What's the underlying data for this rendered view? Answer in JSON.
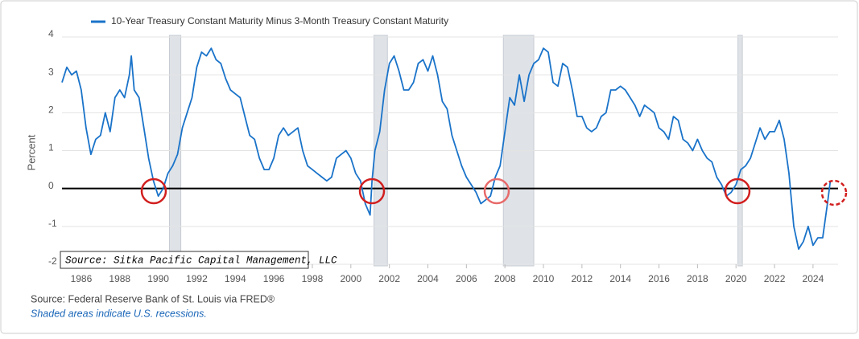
{
  "chart_data": {
    "type": "line",
    "series": [
      {
        "name": "10-Year Treasury Constant Maturity Minus 3-Month Treasury Constant Maturity",
        "color": "#1a73c9",
        "x": [
          1985.0,
          1985.25,
          1985.5,
          1985.75,
          1986.0,
          1986.25,
          1986.5,
          1986.75,
          1987.0,
          1987.25,
          1987.5,
          1987.75,
          1988.0,
          1988.25,
          1988.5,
          1988.6,
          1988.75,
          1989.0,
          1989.25,
          1989.5,
          1989.75,
          1990.0,
          1990.25,
          1990.5,
          1990.75,
          1991.0,
          1991.25,
          1991.5,
          1991.75,
          1992.0,
          1992.25,
          1992.5,
          1992.75,
          1993.0,
          1993.25,
          1993.5,
          1993.75,
          1994.0,
          1994.25,
          1994.5,
          1994.75,
          1995.0,
          1995.25,
          1995.5,
          1995.75,
          1996.0,
          1996.25,
          1996.5,
          1996.75,
          1997.0,
          1997.25,
          1997.5,
          1997.75,
          1998.0,
          1998.25,
          1998.5,
          1998.75,
          1999.0,
          1999.25,
          1999.5,
          1999.75,
          2000.0,
          2000.25,
          2000.5,
          2000.75,
          2001.0,
          2001.1,
          2001.25,
          2001.5,
          2001.75,
          2002.0,
          2002.25,
          2002.5,
          2002.75,
          2003.0,
          2003.25,
          2003.5,
          2003.75,
          2004.0,
          2004.25,
          2004.5,
          2004.75,
          2005.0,
          2005.25,
          2005.5,
          2005.75,
          2006.0,
          2006.25,
          2006.5,
          2006.75,
          2007.0,
          2007.25,
          2007.5,
          2007.75,
          2008.0,
          2008.25,
          2008.5,
          2008.75,
          2009.0,
          2009.25,
          2009.5,
          2009.75,
          2010.0,
          2010.25,
          2010.5,
          2010.75,
          2011.0,
          2011.25,
          2011.5,
          2011.75,
          2012.0,
          2012.25,
          2012.5,
          2012.75,
          2013.0,
          2013.25,
          2013.5,
          2013.75,
          2014.0,
          2014.25,
          2014.5,
          2014.75,
          2015.0,
          2015.25,
          2015.5,
          2015.75,
          2016.0,
          2016.25,
          2016.5,
          2016.75,
          2017.0,
          2017.25,
          2017.5,
          2017.75,
          2018.0,
          2018.25,
          2018.5,
          2018.75,
          2019.0,
          2019.25,
          2019.5,
          2019.75,
          2020.0,
          2020.25,
          2020.5,
          2020.75,
          2021.0,
          2021.25,
          2021.5,
          2021.75,
          2022.0,
          2022.25,
          2022.5,
          2022.75,
          2023.0,
          2023.25,
          2023.5,
          2023.75,
          2024.0,
          2024.25,
          2024.5,
          2024.75,
          2024.9
        ],
        "values": [
          2.8,
          3.2,
          3.0,
          3.1,
          2.6,
          1.6,
          0.9,
          1.3,
          1.4,
          2.0,
          1.5,
          2.4,
          2.6,
          2.4,
          3.0,
          3.5,
          2.6,
          2.4,
          1.6,
          0.8,
          0.2,
          -0.2,
          0.0,
          0.4,
          0.6,
          0.9,
          1.6,
          2.0,
          2.4,
          3.2,
          3.6,
          3.5,
          3.7,
          3.4,
          3.3,
          2.9,
          2.6,
          2.5,
          2.4,
          1.9,
          1.4,
          1.3,
          0.8,
          0.5,
          0.5,
          0.8,
          1.4,
          1.6,
          1.4,
          1.5,
          1.6,
          1.0,
          0.6,
          0.5,
          0.4,
          0.3,
          0.2,
          0.3,
          0.8,
          0.9,
          1.0,
          0.8,
          0.4,
          0.2,
          -0.4,
          -0.7,
          0.2,
          1.0,
          1.5,
          2.6,
          3.3,
          3.5,
          3.1,
          2.6,
          2.6,
          2.8,
          3.3,
          3.4,
          3.1,
          3.5,
          3.0,
          2.3,
          2.1,
          1.4,
          1.0,
          0.6,
          0.3,
          0.1,
          -0.1,
          -0.4,
          -0.3,
          -0.2,
          0.3,
          0.6,
          1.5,
          2.4,
          2.2,
          3.0,
          2.3,
          3.0,
          3.3,
          3.4,
          3.7,
          3.6,
          2.8,
          2.7,
          3.3,
          3.2,
          2.6,
          1.9,
          1.9,
          1.6,
          1.5,
          1.6,
          1.9,
          2.0,
          2.6,
          2.6,
          2.7,
          2.6,
          2.4,
          2.2,
          1.9,
          2.2,
          2.1,
          2.0,
          1.6,
          1.5,
          1.3,
          1.9,
          1.8,
          1.3,
          1.2,
          1.0,
          1.3,
          1.0,
          0.8,
          0.7,
          0.3,
          0.1,
          -0.2,
          -0.1,
          0.1,
          0.5,
          0.6,
          0.8,
          1.2,
          1.6,
          1.3,
          1.5,
          1.5,
          1.8,
          1.3,
          0.4,
          -1.0,
          -1.6,
          -1.4,
          -1.0,
          -1.5,
          -1.3,
          -1.3,
          -0.4,
          0.2
        ]
      }
    ],
    "recessions": [
      [
        1990.58,
        1991.17
      ],
      [
        2001.2,
        2001.9
      ],
      [
        2007.92,
        2009.5
      ],
      [
        2020.1,
        2020.33
      ]
    ],
    "xlim": [
      1985,
      2025.3
    ],
    "xticks": [
      1986,
      1988,
      1990,
      1992,
      1994,
      1996,
      1998,
      2000,
      2002,
      2004,
      2006,
      2008,
      2010,
      2012,
      2014,
      2016,
      2018,
      2020,
      2022,
      2024
    ],
    "ylim": [
      -2,
      4
    ],
    "yticks": [
      -2,
      -1,
      0,
      1,
      2,
      3,
      4
    ],
    "ylabel": "Percent",
    "grid": true,
    "annotation": "Source: Sitka Pacific Capital Management, LLC",
    "source": "Source: Federal Reserve Bank of St. Louis via FRED®",
    "note": "Shaded areas indicate U.S. recessions."
  }
}
